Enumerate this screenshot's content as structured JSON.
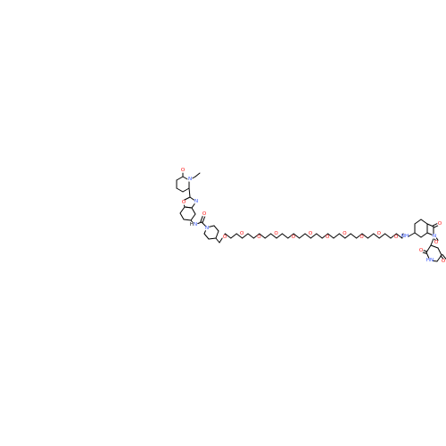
{
  "diagram": {
    "type": "chemical-structure",
    "colors": {
      "bond": "#000000",
      "oxygen": "#ff0d0d",
      "nitrogen": "#3050f8",
      "carbon": "#000000",
      "background": "#ffffff"
    },
    "atom_labels": {
      "oxygen": "O",
      "nitrogen": "N",
      "amide_nh": "H",
      "amine_nh": "NH",
      "imide_nh": "HN"
    }
  }
}
